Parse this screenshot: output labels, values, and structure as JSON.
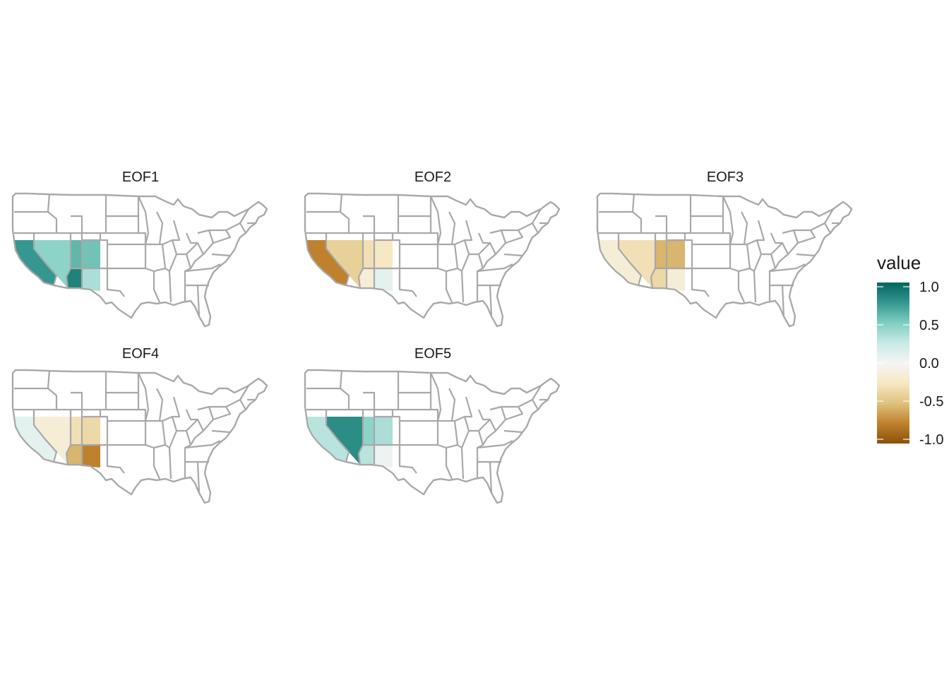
{
  "chart_data": {
    "type": "heatmap",
    "description_scale": "diverging brown-to-teal (BrBG)",
    "panels": [
      {
        "title": "EOF1",
        "regions": [
          {
            "name": "California",
            "value": 0.75
          },
          {
            "name": "Nevada",
            "value": 0.45
          },
          {
            "name": "Utah",
            "value": 0.6
          },
          {
            "name": "Arizona",
            "value": 0.85
          },
          {
            "name": "Colorado",
            "value": 0.55
          },
          {
            "name": "New Mexico",
            "value": 0.35
          }
        ]
      },
      {
        "title": "EOF2",
        "regions": [
          {
            "name": "California",
            "value": -0.75
          },
          {
            "name": "Nevada",
            "value": -0.4
          },
          {
            "name": "Utah",
            "value": -0.3
          },
          {
            "name": "Arizona",
            "value": -0.15
          },
          {
            "name": "Colorado",
            "value": -0.25
          },
          {
            "name": "New Mexico",
            "value": 0.1
          }
        ]
      },
      {
        "title": "EOF3",
        "regions": [
          {
            "name": "California",
            "value": -0.15
          },
          {
            "name": "Nevada",
            "value": -0.3
          },
          {
            "name": "Utah",
            "value": -0.55
          },
          {
            "name": "Arizona",
            "value": -0.35
          },
          {
            "name": "Colorado",
            "value": -0.55
          },
          {
            "name": "New Mexico",
            "value": -0.15
          }
        ]
      },
      {
        "title": "EOF4",
        "regions": [
          {
            "name": "California",
            "value": 0.1
          },
          {
            "name": "Nevada",
            "value": -0.15
          },
          {
            "name": "Utah",
            "value": -0.3
          },
          {
            "name": "Arizona",
            "value": -0.55
          },
          {
            "name": "Colorado",
            "value": -0.35
          },
          {
            "name": "New Mexico",
            "value": -0.75
          }
        ]
      },
      {
        "title": "EOF5",
        "regions": [
          {
            "name": "California",
            "value": 0.3
          },
          {
            "name": "Nevada",
            "value": 0.8
          },
          {
            "name": "Utah",
            "value": 0.45
          },
          {
            "name": "Arizona",
            "value": 0.3
          },
          {
            "name": "Colorado",
            "value": 0.35
          },
          {
            "name": "New Mexico",
            "value": 0.05
          }
        ]
      }
    ],
    "legend": {
      "title": "value",
      "range": [
        -1.0,
        1.0
      ],
      "ticks": [
        "1.0",
        "0.5",
        "0.0",
        "-0.5",
        "-1.0"
      ],
      "tick_values": [
        1.0,
        0.5,
        0.0,
        -0.5,
        -1.0
      ],
      "colors": [
        "#8c510a",
        "#bf812d",
        "#dfc27d",
        "#f6e8c3",
        "#f5f5f5",
        "#c7eae5",
        "#80cdc1",
        "#35978f",
        "#01665e"
      ]
    },
    "border_color": "#a8a8a8"
  }
}
